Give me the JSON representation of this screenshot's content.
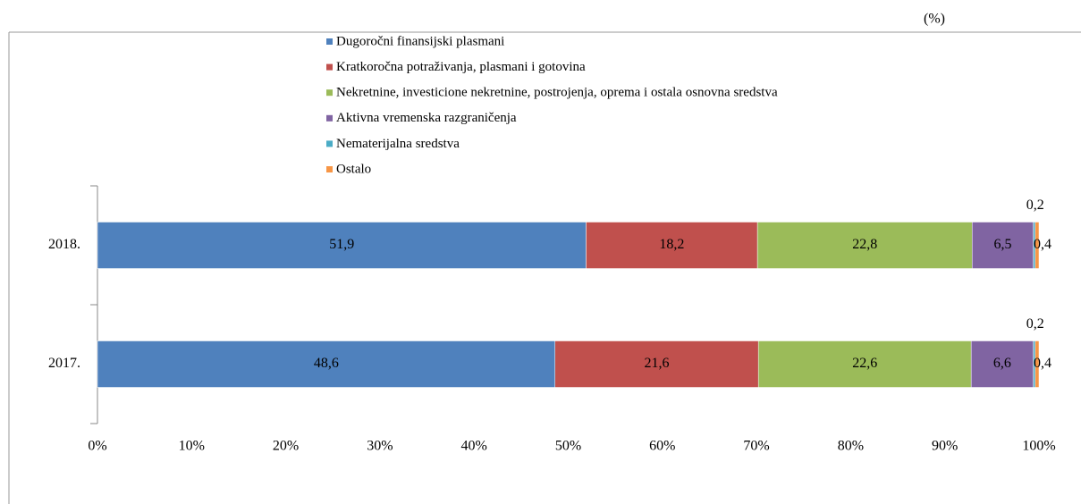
{
  "chart_data": {
    "type": "bar",
    "orientation": "horizontal",
    "stacked": true,
    "unit": "(%)",
    "categories": [
      "2018.",
      "2017."
    ],
    "series": [
      {
        "name": "Dugoročni finansijski plasmani",
        "color": "#4f81bd",
        "values": [
          51.9,
          48.6
        ],
        "value_labels": [
          "51,9",
          "48,6"
        ]
      },
      {
        "name": "Kratkoročna potraživanja, plasmani i gotovina",
        "color": "#c0504d",
        "values": [
          18.2,
          21.6
        ],
        "value_labels": [
          "18,2",
          "21,6"
        ]
      },
      {
        "name": "Nekretnine, investicione nekretnine, postrojenja, oprema i ostala osnovna sredstva",
        "color": "#9bbb59",
        "values": [
          22.8,
          22.6
        ],
        "value_labels": [
          "22,8",
          "22,6"
        ]
      },
      {
        "name": "Aktivna vremenska razgraničenja",
        "color": "#8064a2",
        "values": [
          6.5,
          6.6
        ],
        "value_labels": [
          "6,5",
          "6,6"
        ]
      },
      {
        "name": "Nematerijalna sredstva",
        "color": "#4bacc6",
        "values": [
          0.2,
          0.2
        ],
        "value_labels": [
          "0,2",
          "0,2"
        ]
      },
      {
        "name": "Ostalo",
        "color": "#f79646",
        "values": [
          0.4,
          0.4
        ],
        "value_labels": [
          "0,4",
          "0,4"
        ]
      }
    ],
    "xlim": [
      0,
      100
    ],
    "xticks": [
      {
        "value": 0,
        "label": "0%"
      },
      {
        "value": 10,
        "label": "10%"
      },
      {
        "value": 20,
        "label": "20%"
      },
      {
        "value": 30,
        "label": "30%"
      },
      {
        "value": 40,
        "label": "40%"
      },
      {
        "value": 50,
        "label": "50%"
      },
      {
        "value": 60,
        "label": "60%"
      },
      {
        "value": 70,
        "label": "70%"
      },
      {
        "value": 80,
        "label": "80%"
      },
      {
        "value": 90,
        "label": "90%"
      },
      {
        "value": 100,
        "label": "100%"
      }
    ],
    "legend": "top"
  }
}
